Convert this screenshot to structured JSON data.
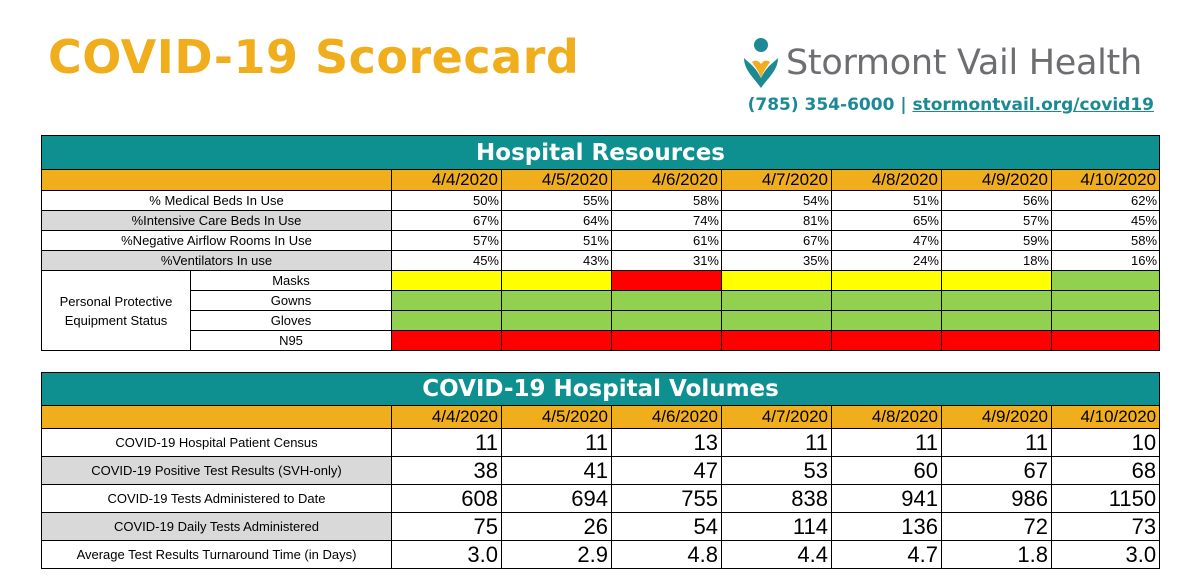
{
  "header": {
    "title": "COVID-19 Scorecard",
    "org": "Stormont Vail Health",
    "phone": "(785) 354-6000",
    "separator": "|",
    "link": "stormontvail.org/covid19",
    "colors": {
      "title": "#f0ad1c",
      "teal": "#0f9090"
    }
  },
  "dates": [
    "4/4/2020",
    "4/5/2020",
    "4/6/2020",
    "4/7/2020",
    "4/8/2020",
    "4/9/2020",
    "4/10/2020"
  ],
  "resources": {
    "title": "Hospital Resources",
    "rows": [
      {
        "label": "% Medical Beds In Use",
        "values": [
          "50%",
          "55%",
          "58%",
          "54%",
          "51%",
          "56%",
          "62%"
        ]
      },
      {
        "label": "%Intensive Care Beds In Use",
        "values": [
          "67%",
          "64%",
          "74%",
          "81%",
          "65%",
          "57%",
          "45%"
        ]
      },
      {
        "label": "%Negative Airflow Rooms In Use",
        "values": [
          "57%",
          "51%",
          "61%",
          "67%",
          "47%",
          "59%",
          "58%"
        ]
      },
      {
        "label": "%Ventilators In use",
        "values": [
          "45%",
          "43%",
          "31%",
          "35%",
          "24%",
          "18%",
          "16%"
        ]
      }
    ],
    "ppe": {
      "label_line1": "Personal Protective",
      "label_line2": "Equipment Status",
      "items": [
        {
          "name": "Masks",
          "status": [
            "yellow",
            "yellow",
            "red",
            "yellow",
            "yellow",
            "yellow",
            "green"
          ]
        },
        {
          "name": "Gowns",
          "status": [
            "green",
            "green",
            "green",
            "green",
            "green",
            "green",
            "green"
          ]
        },
        {
          "name": "Gloves",
          "status": [
            "green",
            "green",
            "green",
            "green",
            "green",
            "green",
            "green"
          ]
        },
        {
          "name": "N95",
          "status": [
            "red",
            "red",
            "red",
            "red",
            "red",
            "red",
            "red"
          ]
        }
      ]
    }
  },
  "volumes": {
    "title": "COVID-19 Hospital Volumes",
    "rows": [
      {
        "label": "COVID-19 Hospital Patient Census",
        "values": [
          "11",
          "11",
          "13",
          "11",
          "11",
          "11",
          "10"
        ]
      },
      {
        "label": "COVID-19 Positive Test Results (SVH-only)",
        "values": [
          "38",
          "41",
          "47",
          "53",
          "60",
          "67",
          "68"
        ]
      },
      {
        "label": "COVID-19 Tests Administered to Date",
        "values": [
          "608",
          "694",
          "755",
          "838",
          "941",
          "986",
          "1150"
        ]
      },
      {
        "label": "COVID-19 Daily Tests Administered",
        "values": [
          "75",
          "26",
          "54",
          "114",
          "136",
          "72",
          "73"
        ]
      },
      {
        "label": "Average Test Results Turnaround Time (in Days)",
        "values": [
          "3.0",
          "2.9",
          "4.8",
          "4.4",
          "4.7",
          "1.8",
          "3.0"
        ]
      }
    ]
  }
}
